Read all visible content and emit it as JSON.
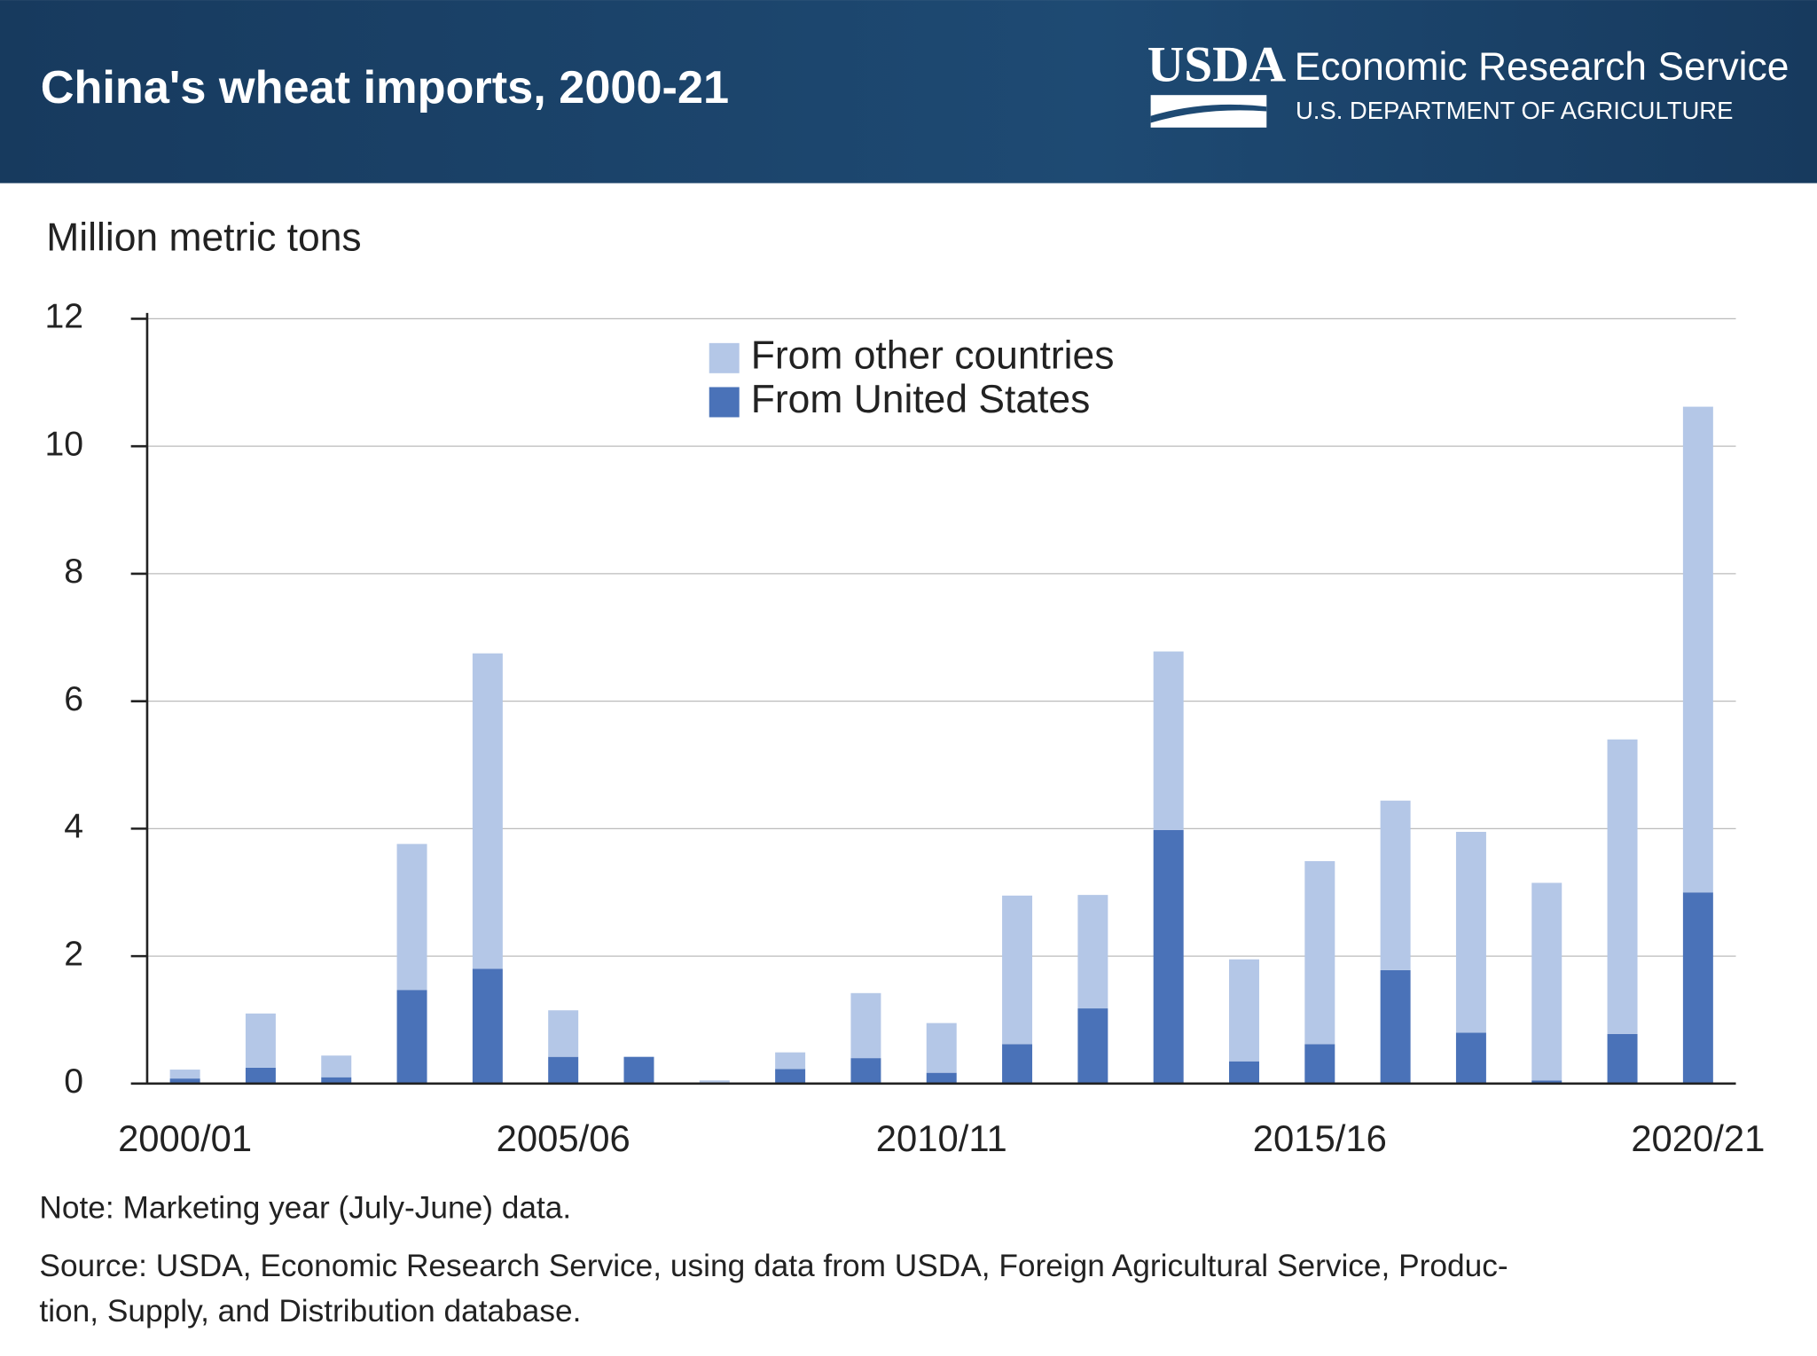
{
  "header": {
    "org": "USDA",
    "agency": "Economic Research Service",
    "department": "U.S. DEPARTMENT OF AGRICULTURE"
  },
  "chart_data": {
    "type": "stacked_bar",
    "title": "China's wheat imports, 2000-21",
    "y_label": "Million metric tons",
    "categories": [
      "2000/01",
      null,
      null,
      null,
      null,
      "2005/06",
      null,
      null,
      null,
      null,
      "2010/11",
      null,
      null,
      null,
      null,
      "2015/16",
      null,
      null,
      null,
      null,
      "2020/21"
    ],
    "series": [
      {
        "name": "From United States",
        "color": "#4a72b8",
        "values": [
          0.08,
          0.25,
          0.1,
          1.47,
          1.8,
          0.42,
          0.42,
          0,
          0.23,
          0.4,
          0.17,
          0.62,
          1.18,
          3.98,
          0.35,
          0.62,
          1.78,
          0.8,
          0.05,
          0.78,
          3.0
        ]
      },
      {
        "name": "From other countries",
        "color": "#b4c7e7",
        "values": [
          0.14,
          0.85,
          0.34,
          2.29,
          4.95,
          0.73,
          0,
          0.05,
          0.26,
          1.02,
          0.78,
          2.33,
          1.78,
          2.8,
          1.6,
          2.87,
          2.66,
          3.15,
          3.1,
          4.62,
          7.62
        ]
      }
    ],
    "ylim": [
      0,
      12
    ],
    "yticks": [
      0,
      2,
      4,
      6,
      8,
      10,
      12
    ],
    "grid": true,
    "note": "Note: Marketing year (July-June) data.",
    "source_lines": [
      "Source: USDA, Economic Research Service, using data from USDA, Foreign Agricultural Service, Produc-",
      "tion, Supply, and Distribution database."
    ]
  }
}
